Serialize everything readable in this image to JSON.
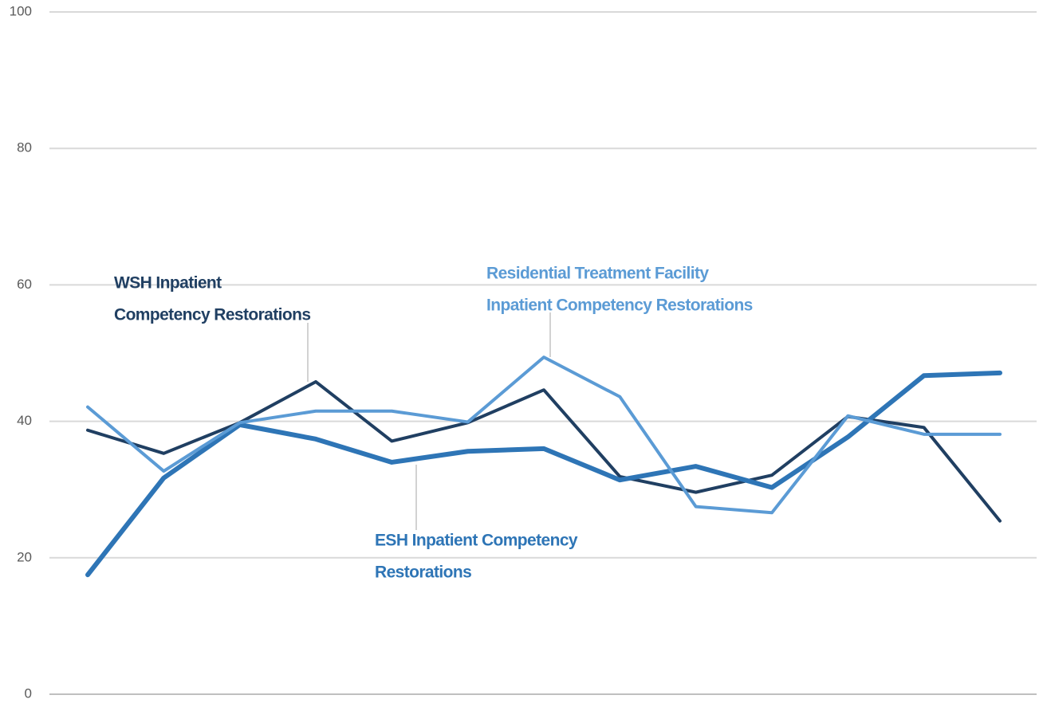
{
  "chart_data": {
    "type": "line",
    "categories": [
      null,
      null,
      null,
      null,
      null,
      null,
      null,
      null,
      null,
      null,
      null,
      null,
      null
    ],
    "ylim": [
      0,
      100
    ],
    "yticks": [
      0,
      20,
      40,
      60,
      80,
      100
    ],
    "grid": true,
    "series": [
      {
        "color": "#203f62",
        "width": 4,
        "values": [
          38.7,
          35.3,
          39.8,
          45.8,
          37.1,
          39.8,
          44.6,
          31.9,
          29.6,
          32.1,
          40.7,
          39.1,
          25.4
        ]
      },
      {
        "color": "#2e75b6",
        "width": 6,
        "values": [
          17.5,
          31.7,
          39.5,
          37.4,
          34.0,
          35.6,
          36.0,
          31.4,
          33.4,
          30.3,
          37.7,
          46.7,
          47.1
        ]
      },
      {
        "color": "#5b9bd5",
        "width": 4,
        "values": [
          42.1,
          32.7,
          39.8,
          41.5,
          41.5,
          39.9,
          49.4,
          43.6,
          27.5,
          26.6,
          40.8,
          38.1,
          38.1
        ]
      }
    ],
    "annotations": [
      {
        "series": 0,
        "lines": [
          "WSH Inpatient",
          "Competency Restorations"
        ]
      },
      {
        "series": 2,
        "lines": [
          "Residential Treatment Facility",
          "Inpatient Competency Restorations"
        ]
      },
      {
        "series": 1,
        "lines": [
          "ESH Inpatient Competency",
          "Restorations"
        ]
      }
    ]
  }
}
